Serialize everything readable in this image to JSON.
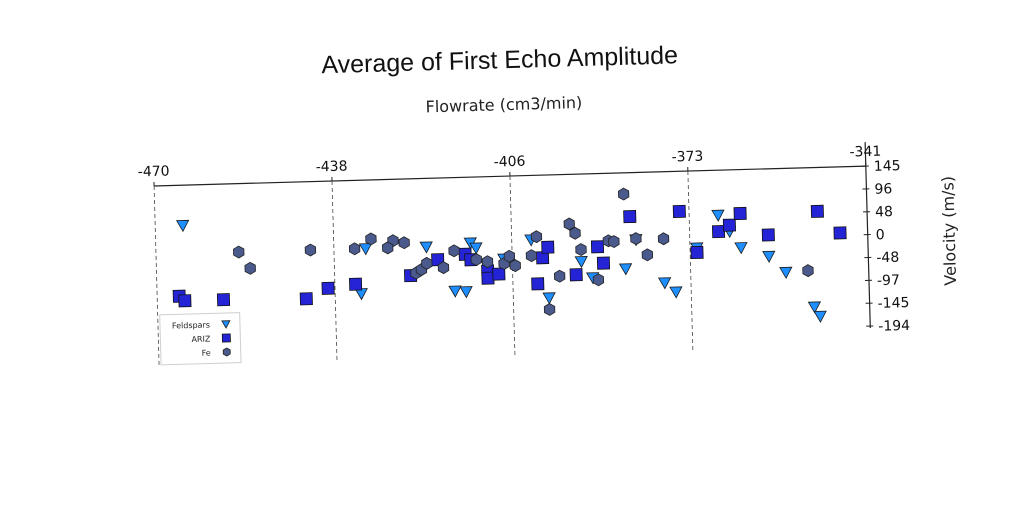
{
  "chart_data": {
    "type": "scatter",
    "title": "Average of First Echo Amplitude",
    "xlabel": "Flowrate (cm3/min)",
    "ylabel": "Velocity (m/s)",
    "x_ticks": [
      "-470",
      "-438",
      "-406",
      "-373",
      "-341"
    ],
    "y_ticks": [
      "145",
      "96",
      "48",
      "0",
      "-48",
      "-97",
      "-145",
      "-194"
    ],
    "xlim": [
      -470,
      -341
    ],
    "ylim": [
      -194,
      145
    ],
    "grid": "vertical dashed",
    "legend_position": "bottom-left",
    "series": [
      {
        "name": "Feldspars",
        "marker": "triangle-down",
        "color": "#1f8fff",
        "points": [
          [
            -465,
            60
          ],
          [
            -421,
            0
          ],
          [
            -433,
            -95
          ],
          [
            -432,
            0
          ],
          [
            -414,
            -97
          ],
          [
            -416,
            -95
          ],
          [
            -413,
            6
          ],
          [
            -412,
            -5
          ],
          [
            -407,
            -30
          ],
          [
            -402,
            9
          ],
          [
            -399,
            -115
          ],
          [
            -393,
            -40
          ],
          [
            -391,
            -75
          ],
          [
            -385,
            -58
          ],
          [
            -383,
            3
          ],
          [
            -378,
            -90
          ],
          [
            -376,
            -110
          ],
          [
            -372,
            -18
          ],
          [
            -368,
            50
          ],
          [
            -366,
            15
          ],
          [
            -364,
            -20
          ],
          [
            -359,
            -40
          ],
          [
            -356,
            -75
          ],
          [
            -351,
            -150
          ],
          [
            -350,
            -170
          ]
        ]
      },
      {
        "name": "ARIZ",
        "marker": "square",
        "color": "#2424d6",
        "points": [
          [
            -466,
            -90
          ],
          [
            -465,
            -100
          ],
          [
            -458,
            -100
          ],
          [
            -443,
            -103
          ],
          [
            -439,
            -82
          ],
          [
            -434,
            -75
          ],
          [
            -424,
            -60
          ],
          [
            -419,
            -28
          ],
          [
            -414,
            -18
          ],
          [
            -413,
            -30
          ],
          [
            -410,
            -55
          ],
          [
            -410,
            -70
          ],
          [
            -408,
            -62
          ],
          [
            -401,
            -85
          ],
          [
            -400,
            -30
          ],
          [
            -399,
            -8
          ],
          [
            -394,
            -68
          ],
          [
            -390,
            -10
          ],
          [
            -389,
            -45
          ],
          [
            -384,
            52
          ],
          [
            -375,
            60
          ],
          [
            -372,
            -28
          ],
          [
            -368,
            15
          ],
          [
            -366,
            28
          ],
          [
            -364,
            52
          ],
          [
            -359,
            5
          ],
          [
            -350,
            52
          ],
          [
            -346,
            5
          ]
        ]
      },
      {
        "name": "Fe",
        "marker": "circle",
        "color": "#4a5a8c",
        "points": [
          [
            -455,
            0
          ],
          [
            -453,
            -35
          ],
          [
            -442,
            0
          ],
          [
            -434,
            0
          ],
          [
            -431,
            20
          ],
          [
            -427,
            15
          ],
          [
            -428,
            0
          ],
          [
            -425,
            10
          ],
          [
            -423,
            -55
          ],
          [
            -422,
            -48
          ],
          [
            -421,
            -35
          ],
          [
            -418,
            -45
          ],
          [
            -416,
            -10
          ],
          [
            -412,
            -30
          ],
          [
            -410,
            -35
          ],
          [
            -407,
            -40
          ],
          [
            -406,
            -25
          ],
          [
            -405,
            -45
          ],
          [
            -402,
            -25
          ],
          [
            -401,
            15
          ],
          [
            -399,
            -140
          ],
          [
            -397,
            -70
          ],
          [
            -395,
            40
          ],
          [
            -394,
            20
          ],
          [
            -393,
            -15
          ],
          [
            -390,
            -80
          ],
          [
            -388,
            2
          ],
          [
            -387,
            0
          ],
          [
            -385,
            100
          ],
          [
            -383,
            5
          ],
          [
            -381,
            -30
          ],
          [
            -378,
            3
          ],
          [
            -352,
            -73
          ]
        ]
      }
    ]
  }
}
